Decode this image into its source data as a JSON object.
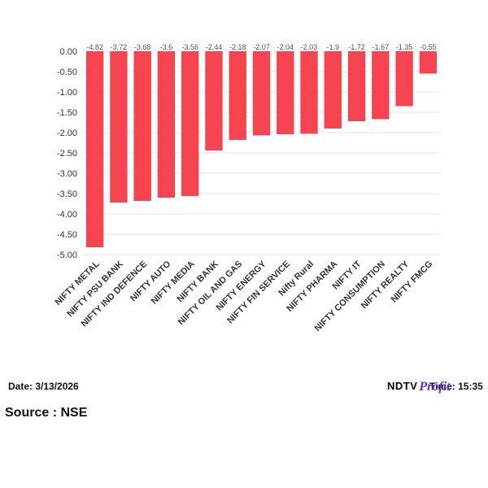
{
  "chart_data": {
    "type": "bar",
    "categories": [
      "NIFTY METAL",
      "NIFTY PSU BANK",
      "NIFTY IND DEFENCE",
      "NIFTY AUTO",
      "NIFTY MEDIA",
      "NIFTY BANK",
      "NIFTY OIL AND GAS",
      "NIFTY ENERGY",
      "NIFTY FIN SERVICE",
      "Nifty Rural",
      "NIFTY PHARMA",
      "NIFTY IT",
      "NIFTY CONSUMPTION",
      "NIFTY REALTY",
      "NIFTY FMCG"
    ],
    "values": [
      -4.82,
      -3.72,
      -3.68,
      -3.6,
      -3.56,
      -2.44,
      -2.18,
      -2.07,
      -2.04,
      -2.03,
      -1.9,
      -1.72,
      -1.67,
      -1.35,
      -0.55
    ],
    "data_labels": [
      "-4.82",
      "-3.72",
      "-3.68",
      "-3.6",
      "-3.56",
      "-2.44",
      "-2.18",
      "-2.07",
      "-2.04",
      "-2.03",
      "-1.9",
      "-1.72",
      "-1.67",
      "-1.35",
      "-0.55"
    ],
    "y_ticks": [
      "0.00",
      "-0.50",
      "-1.00",
      "-1.50",
      "-2.00",
      "-2.50",
      "-3.00",
      "-3.50",
      "-4.00",
      "-4.50",
      "-5.00"
    ],
    "ylim": [
      -5,
      0
    ],
    "grid": true,
    "bar_color": "#f5444f"
  },
  "footer": {
    "date": "Date: 3/13/2026",
    "source": "Source : NSE",
    "time": "Time: 15:35",
    "logo_ndtv": "NDTV",
    "logo_profit": "Profit"
  }
}
